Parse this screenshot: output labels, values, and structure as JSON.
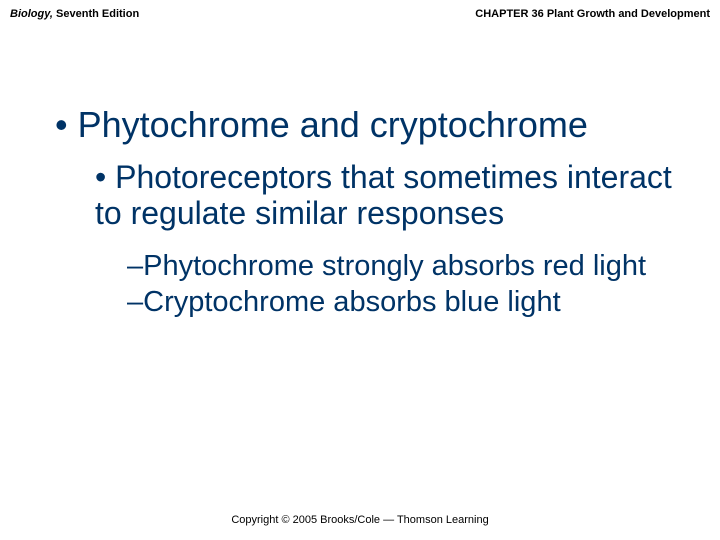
{
  "header": {
    "book_title": "Biology,",
    "edition": " Seventh Edition",
    "chapter": "CHAPTER 36 Plant Growth and Development"
  },
  "content": {
    "level1": {
      "bullet": "•",
      "text": "Phytochrome and cryptochrome"
    },
    "level2": {
      "bullet": "•",
      "text": "Photoreceptors that sometimes interact to regulate similar responses"
    },
    "level3a": {
      "dash": "–",
      "text": "Phytochrome strongly absorbs red light"
    },
    "level3b": {
      "dash": "–",
      "text": "Cryptochrome absorbs blue light"
    }
  },
  "footer": {
    "text": "Copyright © 2005 Brooks/Cole — Thomson Learning"
  },
  "style": {
    "text_color": "#003366",
    "header_color": "#000000",
    "footer_color": "#000000",
    "background": "#ffffff",
    "l1_fontsize": 36,
    "l2_fontsize": 32,
    "l3_fontsize": 29,
    "header_fontsize": 11,
    "footer_fontsize": 11
  }
}
